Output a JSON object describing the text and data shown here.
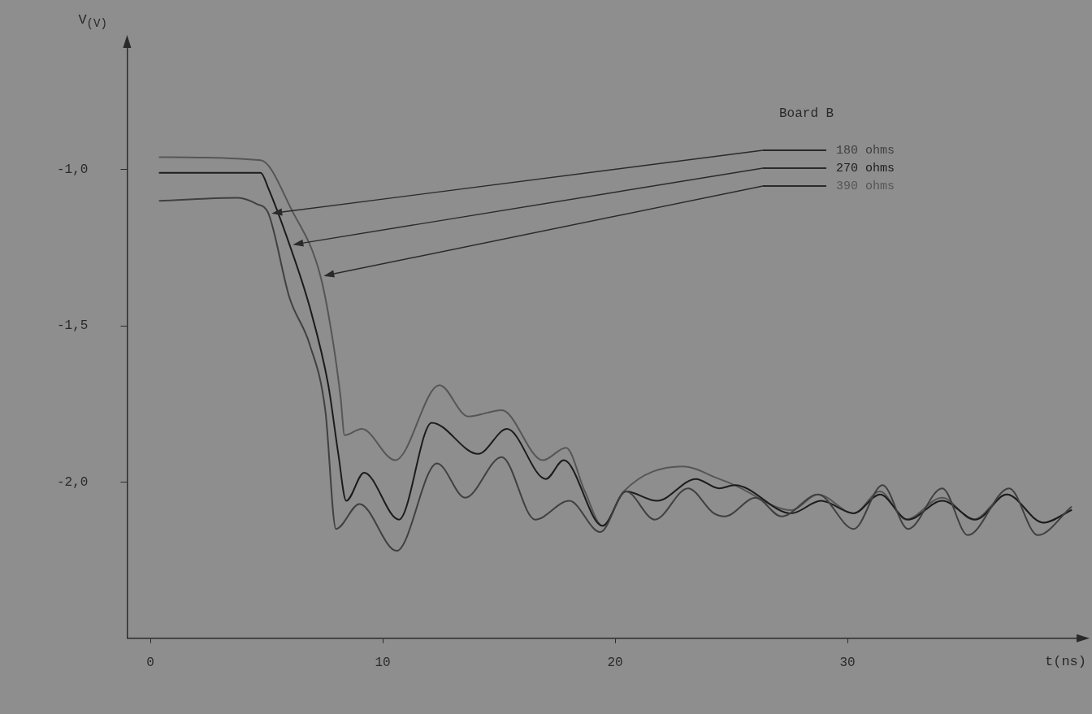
{
  "chart_data": {
    "type": "line",
    "xlabel": "t(ns)",
    "ylabel": "V$_{(V)}$",
    "annotations": [
      "Board B"
    ],
    "xlim": [
      -1,
      40
    ],
    "xticks": [
      0,
      10,
      20,
      30
    ],
    "ylim": [
      -2.5,
      -0.6
    ],
    "yticks": [
      {
        "value": -1,
        "label": "-1,0"
      },
      {
        "value": -1.5,
        "label": "-1,5"
      },
      {
        "value": -2,
        "label": "-2,0"
      }
    ],
    "grid": false,
    "legend": "top right",
    "marker": "none",
    "line_style": "solid",
    "series": [
      {
        "name": "180 ohms",
        "color": "#404040",
        "x": [
          0.4,
          3.75,
          4.58,
          5.08,
          5.99,
          6.86,
          7.53,
          7.99,
          9.0,
          10.6,
          12.34,
          13.55,
          15.12,
          16.56,
          18.03,
          19.36,
          20.47,
          21.71,
          23.14,
          24.25,
          24.72,
          26.05,
          27.16,
          28.73,
          30.27,
          31.51,
          32.61,
          34.08,
          35.18,
          36.96,
          38.19,
          39.63
        ],
        "values": [
          -1.1,
          -1.09,
          -1.11,
          -1.14,
          -1.41,
          -1.56,
          -1.77,
          -2.15,
          -2.07,
          -2.22,
          -1.94,
          -2.05,
          -1.92,
          -2.12,
          -2.06,
          -2.16,
          -2.03,
          -2.12,
          -2.02,
          -2.1,
          -2.11,
          -2.05,
          -2.11,
          -2.04,
          -2.15,
          -2.01,
          -2.15,
          -2.02,
          -2.17,
          -2.02,
          -2.17,
          -2.08
        ]
      },
      {
        "name": "270 ohms",
        "color": "#1c1c1c",
        "x": [
          0.4,
          4.75,
          5.08,
          5.99,
          6.86,
          7.66,
          8.09,
          8.43,
          9.2,
          10.7,
          12.11,
          14.11,
          15.35,
          17.02,
          17.79,
          19.46,
          20.47,
          21.81,
          23.48,
          24.48,
          25.15,
          27.59,
          28.86,
          30.27,
          31.4,
          32.61,
          34.08,
          35.52,
          36.86,
          38.43,
          39.63
        ],
        "values": [
          -1.01,
          -1.01,
          -1.06,
          -1.24,
          -1.44,
          -1.69,
          -1.91,
          -2.06,
          -1.97,
          -2.12,
          -1.81,
          -1.91,
          -1.83,
          -1.99,
          -1.93,
          -2.14,
          -2.03,
          -2.06,
          -1.99,
          -2.02,
          -2.01,
          -2.1,
          -2.06,
          -2.1,
          -2.04,
          -2.12,
          -2.06,
          -2.12,
          -2.04,
          -2.13,
          -2.09
        ]
      },
      {
        "name": "390 ohms",
        "color": "#565656",
        "x": [
          0.4,
          4.75,
          6.09,
          7.32,
          7.86,
          8.19,
          8.36,
          9.1,
          10.54,
          12.44,
          13.68,
          15.12,
          16.89,
          17.89,
          18.7,
          19.46,
          20.37,
          22.91,
          24.48,
          25.15,
          27.59,
          28.73,
          30.27,
          31.4,
          32.51,
          34.08,
          35.42,
          36.86,
          38.43,
          39.63
        ],
        "values": [
          -0.96,
          -0.97,
          -1.13,
          -1.34,
          -1.55,
          -1.73,
          -1.85,
          -1.83,
          -1.93,
          -1.69,
          -1.79,
          -1.77,
          -1.93,
          -1.89,
          -2.03,
          -2.14,
          -2.03,
          -1.95,
          -1.99,
          -2.01,
          -2.09,
          -2.04,
          -2.1,
          -2.03,
          -2.12,
          -2.05,
          -2.12,
          -2.04,
          -2.13,
          -2.09
        ]
      }
    ]
  }
}
